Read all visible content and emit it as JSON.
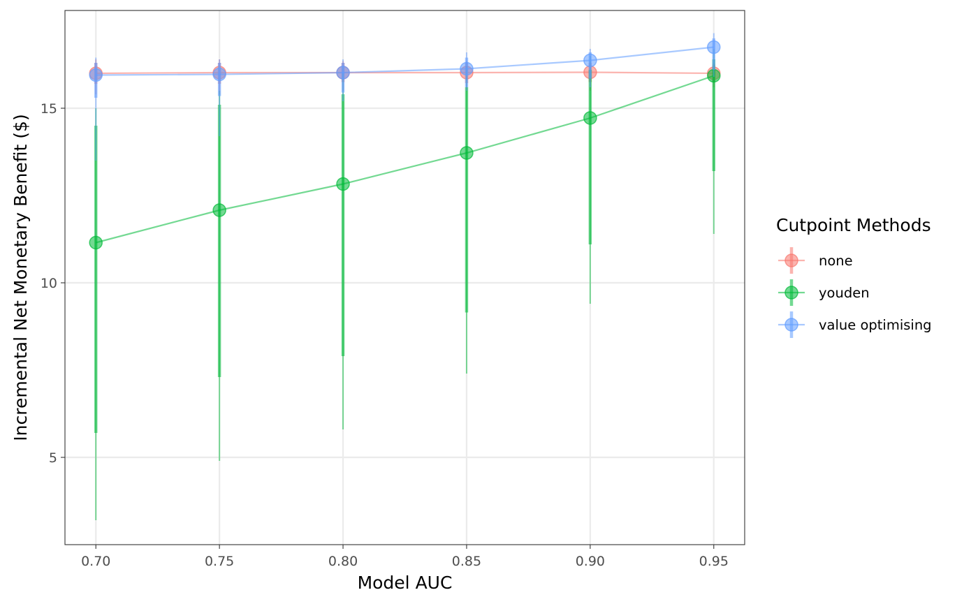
{
  "chart_data": {
    "type": "line",
    "title": "",
    "xlabel": "Model AUC",
    "ylabel": "Incremental Net Monetary Benefit ($)",
    "xlim": [
      0.6875,
      0.9625
    ],
    "ylim": [
      2.5,
      17.8
    ],
    "x_ticks": [
      0.7,
      0.75,
      0.8,
      0.85,
      0.9,
      0.95
    ],
    "x_tick_labels": [
      "0.70",
      "0.75",
      "0.80",
      "0.85",
      "0.90",
      "0.95"
    ],
    "y_ticks": [
      5,
      10,
      15
    ],
    "y_tick_labels": [
      "5",
      "10",
      "15"
    ],
    "grid": true,
    "legend": {
      "title": "Cutpoint Methods",
      "position": "right"
    },
    "x": [
      0.7,
      0.75,
      0.8,
      0.85,
      0.9,
      0.95
    ],
    "series": [
      {
        "name": "none",
        "color": "#F8766D",
        "values": [
          16.0,
          16.02,
          16.02,
          16.02,
          16.03,
          16.0
        ],
        "inner_interval": [
          [
            15.7,
            16.3
          ],
          [
            15.7,
            16.3
          ],
          [
            15.75,
            16.3
          ],
          [
            15.72,
            16.3
          ],
          [
            15.75,
            16.3
          ],
          [
            15.75,
            16.25
          ]
        ],
        "outer_interval": [
          [
            15.4,
            16.4
          ],
          [
            15.4,
            16.4
          ],
          [
            15.5,
            16.35
          ],
          [
            15.5,
            16.35
          ],
          [
            15.5,
            16.35
          ],
          [
            15.6,
            16.3
          ]
        ]
      },
      {
        "name": "youden",
        "color": "#00BA38",
        "values": [
          11.15,
          12.08,
          12.83,
          13.72,
          14.72,
          15.93
        ],
        "inner_interval": [
          [
            5.7,
            14.5
          ],
          [
            7.3,
            15.1
          ],
          [
            7.9,
            15.4
          ],
          [
            9.15,
            15.6
          ],
          [
            11.1,
            16.1
          ],
          [
            13.2,
            16.4
          ]
        ],
        "outer_interval": [
          [
            3.2,
            15.0
          ],
          [
            4.9,
            15.5
          ],
          [
            5.8,
            16.0
          ],
          [
            7.4,
            16.2
          ],
          [
            9.4,
            16.5
          ],
          [
            11.4,
            16.7
          ]
        ]
      },
      {
        "name": "value optimising",
        "color": "#619CFF",
        "values": [
          15.95,
          15.97,
          16.02,
          16.13,
          16.37,
          16.75
        ],
        "inner_interval": [
          [
            15.3,
            16.3
          ],
          [
            15.35,
            16.3
          ],
          [
            15.45,
            16.3
          ],
          [
            15.6,
            16.45
          ],
          [
            15.85,
            16.6
          ],
          [
            16.1,
            17.0
          ]
        ],
        "outer_interval": [
          [
            13.5,
            16.45
          ],
          [
            14.2,
            16.4
          ],
          [
            15.2,
            16.4
          ],
          [
            15.5,
            16.6
          ],
          [
            15.6,
            16.7
          ],
          [
            15.9,
            17.15
          ]
        ]
      }
    ]
  }
}
